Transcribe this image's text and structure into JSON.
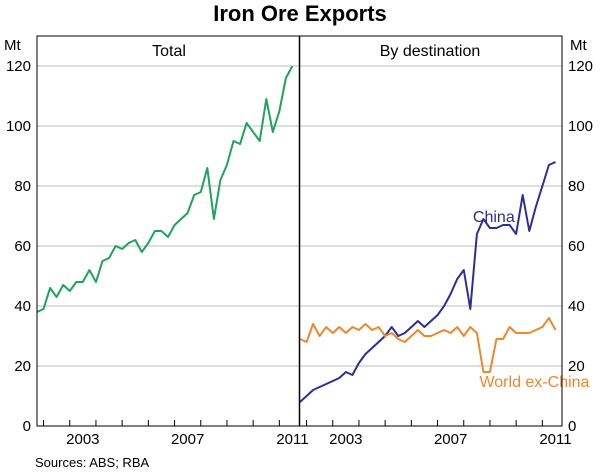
{
  "chart_data": {
    "type": "line",
    "title": "Iron Ore Exports",
    "source": "Sources: ABS; RBA",
    "yunit_left": "Mt",
    "yunit_right": "Mt",
    "ylim": [
      0,
      130
    ],
    "yticks": [
      0,
      20,
      40,
      60,
      80,
      100,
      120
    ],
    "ytick_labels": [
      "0",
      "20",
      "40",
      "60",
      "80",
      "100",
      "120"
    ],
    "xlim": [
      2001.75,
      2011.75
    ],
    "xtick_labels": [
      {
        "year": 2003,
        "label": "2003"
      },
      {
        "year": 2007,
        "label": "2007"
      },
      {
        "year": 2011,
        "label": "2011"
      }
    ],
    "grid": true,
    "panels": [
      {
        "title": "Total",
        "series": [
          {
            "name": "Total",
            "color": "#1fa35b",
            "x": [
              2001.75,
              2002.0,
              2002.25,
              2002.5,
              2002.75,
              2003.0,
              2003.25,
              2003.5,
              2003.75,
              2004.0,
              2004.25,
              2004.5,
              2004.75,
              2005.0,
              2005.25,
              2005.5,
              2005.75,
              2006.0,
              2006.25,
              2006.5,
              2006.75,
              2007.0,
              2007.25,
              2007.5,
              2007.75,
              2008.0,
              2008.25,
              2008.5,
              2008.75,
              2009.0,
              2009.25,
              2009.5,
              2009.75,
              2010.0,
              2010.25,
              2010.5,
              2010.75,
              2011.0,
              2011.25,
              2011.5
            ],
            "values": [
              38,
              39,
              46,
              43,
              47,
              45,
              48,
              48,
              52,
              48,
              55,
              56,
              60,
              59,
              61,
              62,
              58,
              61,
              65,
              65,
              63,
              67,
              69,
              71,
              77,
              78,
              86,
              69,
              82,
              87,
              95,
              94,
              101,
              98,
              95,
              109,
              98,
              105,
              116,
              120
            ]
          }
        ]
      },
      {
        "title": "By destination",
        "series": [
          {
            "name": "China",
            "color": "#2b2f96",
            "x": [
              2001.75,
              2002.0,
              2002.25,
              2002.5,
              2002.75,
              2003.0,
              2003.25,
              2003.5,
              2003.75,
              2004.0,
              2004.25,
              2004.5,
              2004.75,
              2005.0,
              2005.25,
              2005.5,
              2005.75,
              2006.0,
              2006.25,
              2006.5,
              2006.75,
              2007.0,
              2007.25,
              2007.5,
              2007.75,
              2008.0,
              2008.25,
              2008.5,
              2008.75,
              2009.0,
              2009.25,
              2009.5,
              2009.75,
              2010.0,
              2010.25,
              2010.5,
              2010.75,
              2011.0,
              2011.25,
              2011.5
            ],
            "values": [
              8,
              10,
              12,
              13,
              14,
              15,
              16,
              18,
              17,
              21,
              24,
              26,
              28,
              30,
              33,
              30,
              31,
              33,
              35,
              33,
              35,
              37,
              40,
              44,
              49,
              52,
              39,
              64,
              69,
              66,
              66,
              67,
              67,
              64,
              77,
              65,
              73,
              80,
              87,
              88
            ]
          },
          {
            "name": "World ex-China",
            "color": "#f0872d",
            "x": [
              2001.75,
              2002.0,
              2002.25,
              2002.5,
              2002.75,
              2003.0,
              2003.25,
              2003.5,
              2003.75,
              2004.0,
              2004.25,
              2004.5,
              2004.75,
              2005.0,
              2005.25,
              2005.5,
              2005.75,
              2006.0,
              2006.25,
              2006.5,
              2006.75,
              2007.0,
              2007.25,
              2007.5,
              2007.75,
              2008.0,
              2008.25,
              2008.5,
              2008.75,
              2009.0,
              2009.25,
              2009.5,
              2009.75,
              2010.0,
              2010.25,
              2010.5,
              2010.75,
              2011.0,
              2011.25,
              2011.5
            ],
            "values": [
              29,
              28,
              34,
              30,
              33,
              31,
              33,
              31,
              33,
              32,
              34,
              32,
              33,
              30,
              31,
              29,
              28,
              30,
              32,
              30,
              30,
              31,
              32,
              31,
              33,
              30,
              33,
              31,
              18,
              18,
              29,
              29,
              33,
              31,
              31,
              31,
              32,
              33,
              36,
              32
            ]
          }
        ],
        "annotations": [
          {
            "text": "China",
            "color": "#2b2f96",
            "x": 2008.35,
            "y": 68
          },
          {
            "text": "World ex-China",
            "color": "#f0872d",
            "x": 2008.6,
            "y": 13
          }
        ]
      }
    ]
  }
}
